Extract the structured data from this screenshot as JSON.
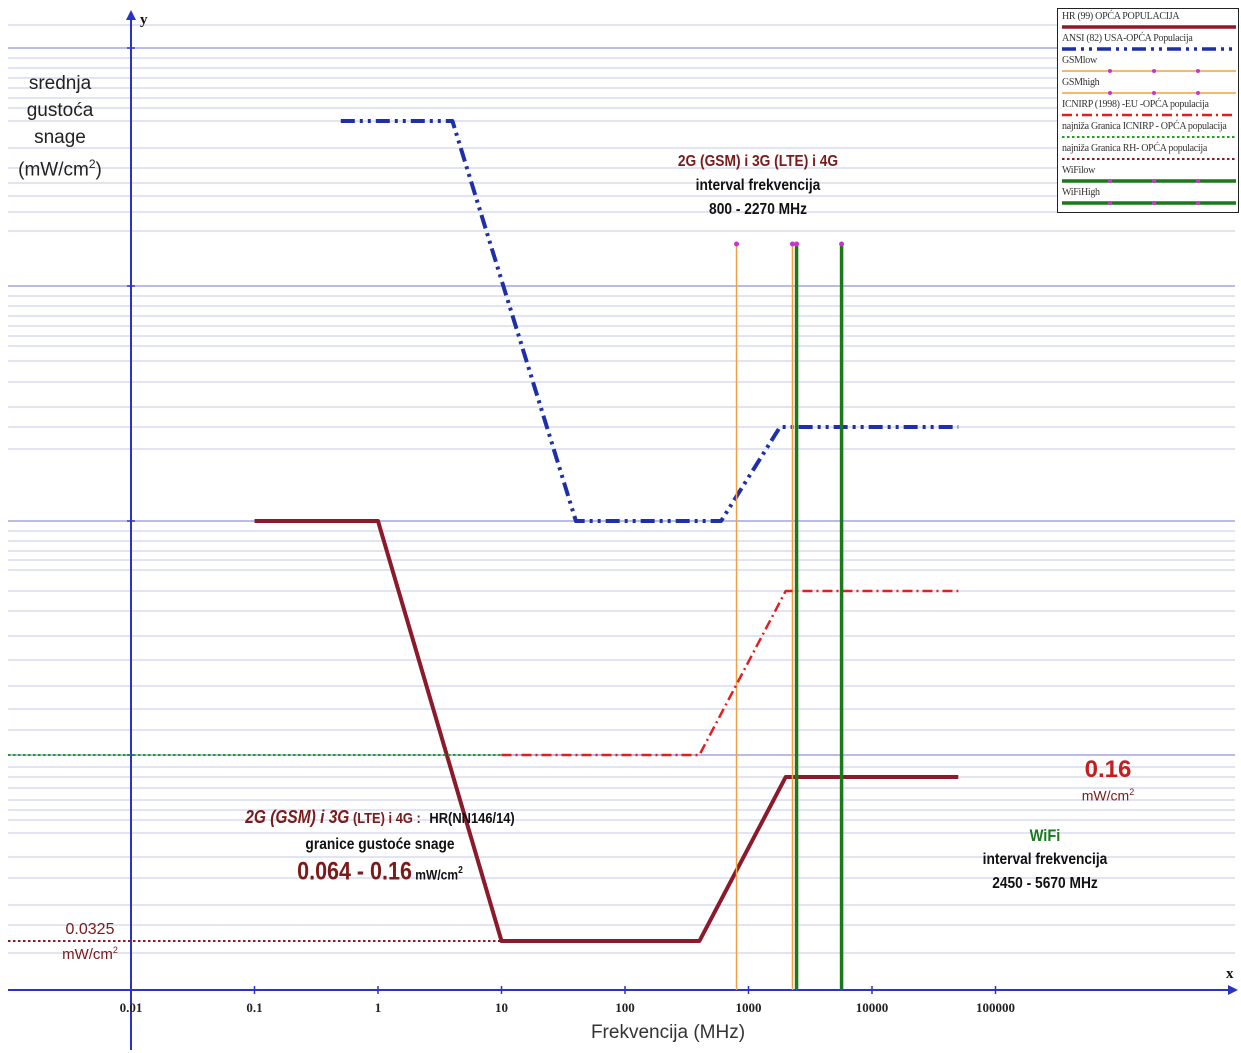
{
  "chart_data": {
    "type": "line",
    "xscale": "log",
    "xlim": [
      0.001,
      1000000
    ],
    "xlabel": "Frekvencija (MHz)",
    "x_axis_letter": "x",
    "y_axis_letter": "y",
    "ylabel_lines": [
      "srednja",
      "gustoća",
      "snage"
    ],
    "ylabel_unit": "(mW/cm",
    "ylabel_unit_sup": "2",
    "ylabel_unit_close": ")",
    "x_ticks": [
      {
        "value": 0.01,
        "label": "0.01"
      },
      {
        "value": 0.1,
        "label": "0.1"
      },
      {
        "value": 1,
        "label": "1"
      },
      {
        "value": 10,
        "label": "10"
      },
      {
        "value": 100,
        "label": "100"
      },
      {
        "value": 1000,
        "label": "1000"
      },
      {
        "value": 10000,
        "label": "10000"
      },
      {
        "value": 100000,
        "label": "100000"
      }
    ],
    "series": [
      {
        "name": "HR (99) OPĆA POPULACIJA",
        "color": "#8b1a2b",
        "style": "solid-thick",
        "points": [
          [
            0.1,
            1.0
          ],
          [
            1,
            1.0
          ],
          [
            10,
            0.0325
          ],
          [
            400,
            0.0325
          ],
          [
            2000,
            0.16
          ],
          [
            50000,
            0.16
          ]
        ]
      },
      {
        "name": "ANSI (82) USA-OPĆA Populacija",
        "color": "#1f2fa8",
        "style": "dashdotdot-thick",
        "points": [
          [
            0.5,
            10
          ],
          [
            4,
            10
          ],
          [
            40,
            1.0
          ],
          [
            600,
            1.0
          ],
          [
            1800,
            2.4
          ],
          [
            50000,
            2.4
          ]
        ]
      },
      {
        "name": "GSMlow",
        "color": "#f0a040",
        "style": "vertical",
        "x": 800
      },
      {
        "name": "GSMhigh",
        "color": "#f0a040",
        "style": "vertical",
        "x": 2270
      },
      {
        "name": "ICNIRP (1998) -EU -OPĆA populacija",
        "color": "#e02020",
        "style": "dashdot",
        "points": [
          [
            10,
            0.2
          ],
          [
            400,
            0.2
          ],
          [
            2000,
            0.5
          ],
          [
            50000,
            0.5
          ]
        ]
      },
      {
        "name": "najniža Granica ICNIRP - OPĆA populacija",
        "color": "#22a022",
        "style": "dotted",
        "points": [
          [
            0.001,
            0.2
          ],
          [
            10,
            0.2
          ]
        ]
      },
      {
        "name": "najniža Granica RH- OPĆA populacija",
        "color": "#8b1a2b",
        "style": "dotted",
        "points": [
          [
            0.001,
            0.0325
          ],
          [
            10,
            0.0325
          ]
        ]
      },
      {
        "name": "WiFilow",
        "color": "#1a7a1a",
        "style": "vertical-thick",
        "x": 2450
      },
      {
        "name": "WiFiHigh",
        "color": "#1a7a1a",
        "style": "vertical-thick",
        "x": 5670
      }
    ],
    "legend_labels": [
      "HR (99) OPĆA POPULACIJA",
      "ANSI (82) USA-OPĆA Populacija",
      "GSMlow",
      "GSMhigh",
      "ICNIRP (1998) -EU -OPĆA populacija",
      "najniža Granica ICNIRP - OPĆA populacija",
      "najniža Granica RH- OPĆA populacija",
      "WiFilow",
      "WiFiHigh"
    ],
    "legend_position": "top-right",
    "grid": true,
    "annotations": {
      "gsm_title": "2G (GSM) i 3G (LTE) i 4G",
      "gsm_interval": "interval frekvencija",
      "gsm_range": "800 - 2270 MHz",
      "hr_title": "2G (GSM) i 3G",
      "hr_title2": " (LTE) i 4G :",
      "hr_law": "HR(NN146/14)",
      "hr_sub": "granice gustoće snage",
      "hr_range": "0.064 - 0.16",
      "hr_unit": " mW/cm",
      "wifi_title": "WiFi",
      "wifi_interval": "interval frekvencija",
      "wifi_range": "2450 - 5670 MHz",
      "max_value": "0.16",
      "max_unit": "mW/cm",
      "min_value": "0.0325",
      "min_unit": "mW/cm",
      "sup2": "2"
    }
  }
}
